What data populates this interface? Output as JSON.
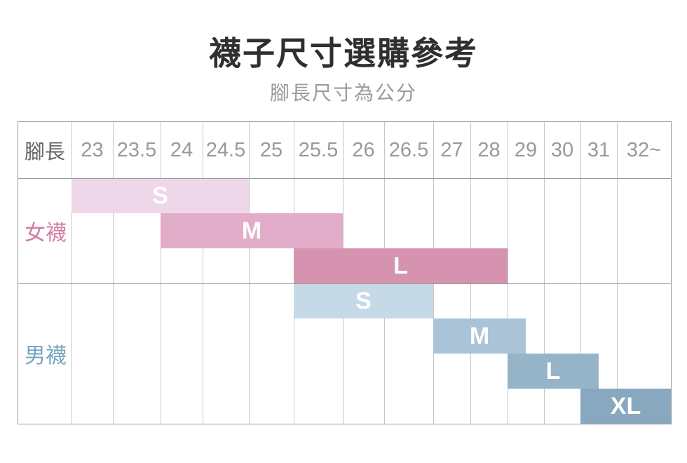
{
  "title": "襪子尺寸選購參考",
  "subtitle": "腳長尺寸為公分",
  "table": {
    "corner_label": "腳長",
    "columns": [
      "23",
      "23.5",
      "24",
      "24.5",
      "25",
      "25.5",
      "26",
      "26.5",
      "27",
      "28",
      "29",
      "30",
      "31",
      "32~"
    ],
    "groups": [
      {
        "label": "女襪",
        "label_color": "#d27ca4",
        "bars": [
          {
            "label": "S",
            "color": "#eed7e9",
            "start": 0,
            "end": 4
          },
          {
            "label": "M",
            "color": "#e2adc8",
            "start": 2,
            "end": 6
          },
          {
            "label": "L",
            "color": "#d693af",
            "start": 5,
            "end": 10
          }
        ]
      },
      {
        "label": "男襪",
        "label_color": "#74a5c1",
        "bars": [
          {
            "label": "S",
            "color": "#c6d9e7",
            "start": 5,
            "end": 8
          },
          {
            "label": "M",
            "color": "#aac3d7",
            "start": 8,
            "end": 10.5
          },
          {
            "label": "L",
            "color": "#96b4c7",
            "start": 10,
            "end": 12.5
          },
          {
            "label": "XL",
            "color": "#87a8be",
            "start": 12,
            "end": 14
          }
        ]
      }
    ]
  },
  "chart_data": {
    "type": "table",
    "title": "襪子尺寸選購參考",
    "subtitle": "腳長尺寸為公分",
    "x_axis_label": "腳長",
    "x_unit": "公分",
    "x_categories": [
      "23",
      "23.5",
      "24",
      "24.5",
      "25",
      "25.5",
      "26",
      "26.5",
      "27",
      "28",
      "29",
      "30",
      "31",
      "32~"
    ],
    "series": [
      {
        "group": "女襪",
        "size": "S",
        "from_cm": "23",
        "to_cm": "24.5",
        "color": "#eed7e9"
      },
      {
        "group": "女襪",
        "size": "M",
        "from_cm": "24",
        "to_cm": "25.5",
        "color": "#e2adc8"
      },
      {
        "group": "女襪",
        "size": "L",
        "from_cm": "25.5",
        "to_cm": "28",
        "color": "#d693af"
      },
      {
        "group": "男襪",
        "size": "S",
        "from_cm": "25.5",
        "to_cm": "26.5",
        "color": "#c6d9e7"
      },
      {
        "group": "男襪",
        "size": "M",
        "from_cm": "27",
        "to_cm": "29",
        "color": "#aac3d7"
      },
      {
        "group": "男襪",
        "size": "L",
        "from_cm": "29",
        "to_cm": "31",
        "color": "#96b4c7"
      },
      {
        "group": "男襪",
        "size": "XL",
        "from_cm": "31",
        "to_cm": "32~",
        "color": "#87a8be"
      }
    ],
    "layout": {
      "legend": false,
      "grid": true,
      "header_row": true,
      "group_rows": [
        "女襪",
        "男襪"
      ]
    }
  }
}
